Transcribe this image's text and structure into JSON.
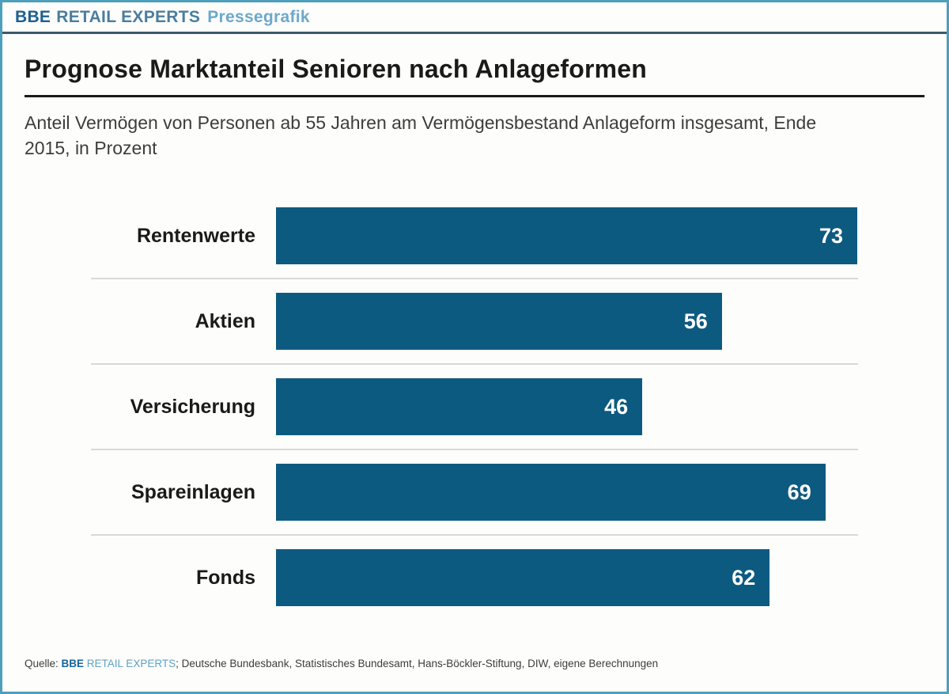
{
  "header": {
    "brand_primary": "BBE",
    "brand_secondary": "RETAIL EXPERTS",
    "label": "Pressegrafik"
  },
  "title": "Prognose Marktanteil Senioren nach Anlageformen",
  "subtitle": "Anteil Vermögen von Personen ab 55 Jahren am Vermögensbestand Anlageform insgesamt, Ende 2015, in Prozent",
  "chart_data": {
    "type": "bar",
    "orientation": "horizontal",
    "title": "Prognose Marktanteil Senioren nach Anlageformen",
    "subtitle": "Anteil Vermögen von Personen ab 55 Jahren am Vermögensbestand Anlageform insgesamt, Ende 2015, in Prozent",
    "categories": [
      "Rentenwerte",
      "Aktien",
      "Versicherung",
      "Spareinlagen",
      "Fonds"
    ],
    "values": [
      73,
      56,
      46,
      69,
      62
    ],
    "unit": "Prozent",
    "xlim": [
      0,
      73
    ],
    "grid": false,
    "legend": false,
    "bar_color": "#0d5a80",
    "value_label_style": "inside-end white bold"
  },
  "footer": {
    "prefix": "Quelle: ",
    "brand_primary": "BBE",
    "brand_secondary": " RETAIL EXPERTS",
    "rest": "; Deutsche Bundesbank, Statistisches Bundesamt, Hans-Böckler-Stiftung, DIW, eigene Berechnungen"
  },
  "colors": {
    "outer_border": "#4d9fbc",
    "header_rule": "#3c5a6b",
    "title_rule": "#1a1a18",
    "bar": "#0d5a80",
    "separator": "#d9d9d7"
  }
}
